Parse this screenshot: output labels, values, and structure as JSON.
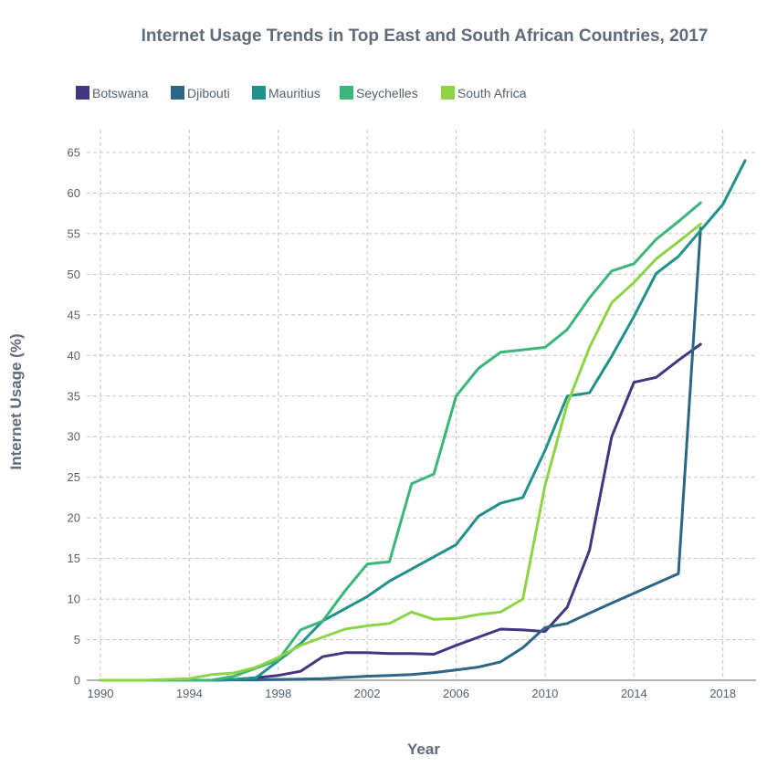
{
  "chart_data": {
    "type": "line",
    "title": "Internet Usage Trends in Top East and South African Countries, 2017",
    "xlabel": "Year",
    "ylabel": "Internet Usage (%)",
    "xlim": [
      1990,
      2019
    ],
    "ylim": [
      0,
      65
    ],
    "x_ticks": [
      1990,
      1994,
      1998,
      2002,
      2006,
      2010,
      2014,
      2018
    ],
    "y_ticks": [
      0,
      5,
      10,
      15,
      20,
      25,
      30,
      35,
      40,
      45,
      50,
      55,
      60,
      65
    ],
    "grid": true,
    "legend_position": "top-left",
    "series": [
      {
        "name": "Botswana",
        "color": "#433580",
        "x": [
          1990,
          1991,
          1992,
          1993,
          1994,
          1995,
          1996,
          1997,
          1998,
          1999,
          2000,
          2001,
          2002,
          2003,
          2004,
          2005,
          2006,
          2007,
          2008,
          2009,
          2010,
          2011,
          2012,
          2013,
          2014,
          2015,
          2016,
          2017
        ],
        "y": [
          0,
          0,
          0,
          0,
          0,
          0,
          0.1,
          0.3,
          0.6,
          1.1,
          2.9,
          3.4,
          3.4,
          3.3,
          3.3,
          3.2,
          4.3,
          5.3,
          6.3,
          6.2,
          6.0,
          9.0,
          16.0,
          30.0,
          36.7,
          37.3,
          39.4,
          41.4
        ]
      },
      {
        "name": "Djibouti",
        "color": "#2c6586",
        "x": [
          1990,
          1991,
          1992,
          1993,
          1994,
          1995,
          1996,
          1997,
          1998,
          1999,
          2000,
          2001,
          2002,
          2003,
          2004,
          2005,
          2006,
          2007,
          2008,
          2009,
          2010,
          2011,
          2012,
          2013,
          2014,
          2015,
          2016,
          2017
        ],
        "y": [
          0,
          0,
          0,
          0,
          0,
          0,
          0.05,
          0.05,
          0.1,
          0.15,
          0.2,
          0.35,
          0.5,
          0.6,
          0.7,
          0.95,
          1.27,
          1.62,
          2.26,
          4.0,
          6.5,
          7.0,
          8.27,
          9.5,
          10.71,
          11.92,
          13.13,
          55.7
        ]
      },
      {
        "name": "Mauritius",
        "color": "#21918b",
        "x": [
          1990,
          1991,
          1992,
          1993,
          1994,
          1995,
          1996,
          1997,
          1998,
          1999,
          2000,
          2001,
          2002,
          2003,
          2004,
          2005,
          2006,
          2007,
          2008,
          2009,
          2010,
          2011,
          2012,
          2013,
          2014,
          2015,
          2016,
          2017,
          2018,
          2019
        ],
        "y": [
          0,
          0,
          0,
          0,
          0,
          0,
          0.1,
          0.3,
          2.4,
          4.5,
          7.3,
          8.8,
          10.3,
          12.2,
          13.7,
          15.2,
          16.7,
          20.2,
          21.8,
          22.5,
          28.3,
          35.0,
          35.4,
          39.9,
          44.8,
          50.1,
          52.2,
          55.4,
          58.6,
          64.0
        ]
      },
      {
        "name": "Seychelles",
        "color": "#3bb67b",
        "x": [
          1990,
          1991,
          1992,
          1993,
          1994,
          1995,
          1996,
          1997,
          1998,
          1999,
          2000,
          2001,
          2002,
          2003,
          2004,
          2005,
          2006,
          2007,
          2008,
          2009,
          2010,
          2011,
          2012,
          2013,
          2014,
          2015,
          2016,
          2017
        ],
        "y": [
          0,
          0,
          0,
          0,
          0,
          0,
          0.5,
          1.5,
          2.5,
          6.2,
          7.3,
          11.0,
          14.3,
          14.6,
          24.2,
          25.4,
          35.0,
          38.4,
          40.4,
          40.7,
          41.0,
          43.2,
          47.1,
          50.4,
          51.3,
          54.3,
          56.5,
          58.8
        ]
      },
      {
        "name": "South Africa",
        "color": "#8dd444",
        "x": [
          1990,
          1991,
          1992,
          1993,
          1994,
          1995,
          1996,
          1997,
          1998,
          1999,
          2000,
          2001,
          2002,
          2003,
          2004,
          2005,
          2006,
          2007,
          2008,
          2009,
          2010,
          2011,
          2012,
          2013,
          2014,
          2015,
          2016,
          2017
        ],
        "y": [
          0,
          0,
          0,
          0.1,
          0.2,
          0.7,
          0.9,
          1.6,
          2.8,
          4.3,
          5.3,
          6.3,
          6.7,
          7.0,
          8.4,
          7.5,
          7.6,
          8.1,
          8.4,
          10.0,
          24.0,
          34.0,
          41.0,
          46.5,
          49.0,
          51.9,
          54.0,
          56.2
        ]
      }
    ]
  }
}
